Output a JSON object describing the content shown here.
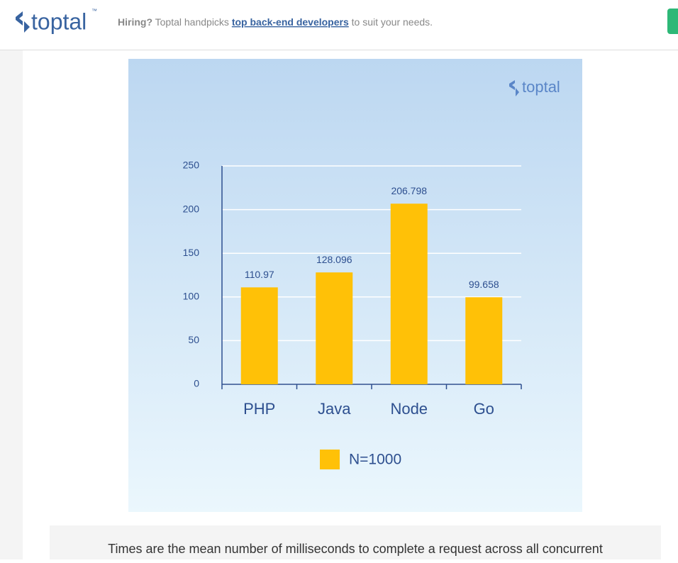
{
  "header": {
    "logo": "toptal",
    "trademark": "™",
    "hiring": "Hiring?",
    "text_before": "Toptal handpicks",
    "link": "top back-end developers",
    "text_after": "to suit your needs."
  },
  "chart_data": {
    "type": "bar",
    "watermark": "toptal",
    "categories": [
      "PHP",
      "Java",
      "Node",
      "Go"
    ],
    "series": [
      {
        "name": "N=1000",
        "color": "#ffc107",
        "values": [
          110.97,
          128.096,
          206.798,
          99.658
        ]
      }
    ],
    "ylim": [
      0,
      250
    ],
    "yticks": [
      0,
      50,
      100,
      150,
      200,
      250
    ],
    "grid": true,
    "legend": "bottom"
  },
  "caption": "Times are the mean number of milliseconds to complete a request across all concurrent"
}
